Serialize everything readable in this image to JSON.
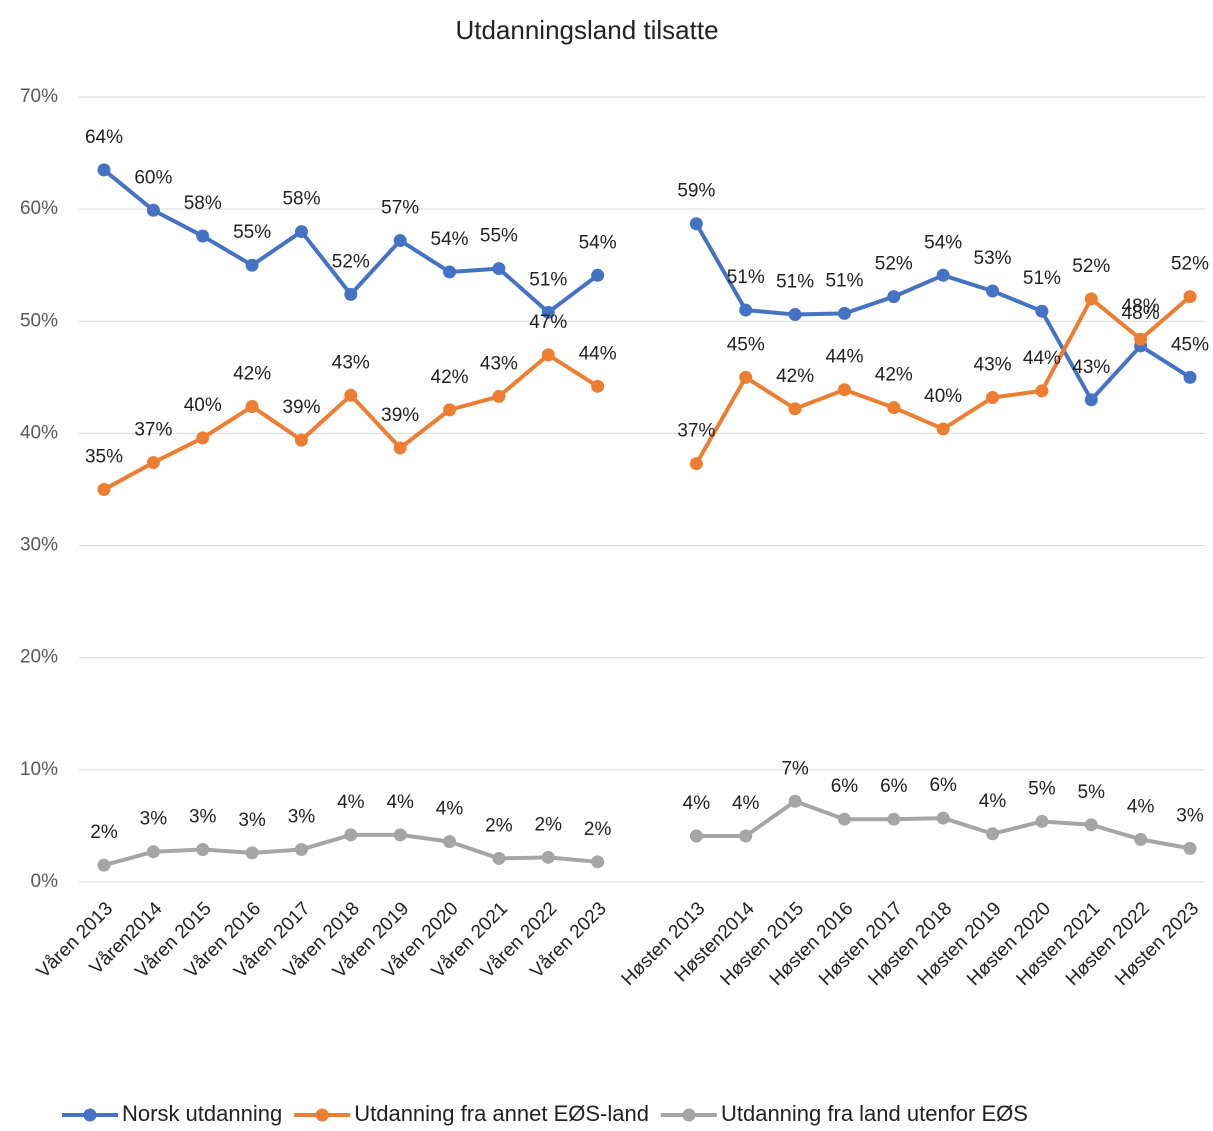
{
  "chart_data": {
    "type": "line",
    "title": "Utdanningsland tilsatte",
    "categories": [
      "Våren 2013",
      "Våren2014",
      "Våren 2015",
      "Våren 2016",
      "Våren 2017",
      "Våren 2018",
      "Våren 2019",
      "Våren 2020",
      "Våren 2021",
      "Våren 2022",
      "Våren 2023",
      null,
      "Høsten 2013",
      "Høsten2014",
      "Høsten 2015",
      "Høsten 2016",
      "Høsten 2017",
      "Høsten 2018",
      "Høsten 2019",
      "Høsten 2020",
      "Høsten 2021",
      "Høsten 2022",
      "Høsten 2023"
    ],
    "series": [
      {
        "name": "Norsk utdanning",
        "color": "#4472c4",
        "values": [
          63.5,
          59.9,
          57.6,
          55.0,
          58.0,
          52.4,
          57.2,
          54.4,
          54.7,
          50.8,
          54.1,
          null,
          58.7,
          51.0,
          50.6,
          50.7,
          52.2,
          54.1,
          52.7,
          50.9,
          43.0,
          47.8,
          45.0
        ],
        "value_labels": [
          "64%",
          "60%",
          "58%",
          "55%",
          "58%",
          "52%",
          "57%",
          "54%",
          "55%",
          "51%",
          "54%",
          null,
          "59%",
          "51%",
          "51%",
          "51%",
          "52%",
          "54%",
          "53%",
          "51%",
          "43%",
          "48%",
          "45%"
        ]
      },
      {
        "name": "Utdanning fra annet EØS-land",
        "color": "#ed7d31",
        "values": [
          35.0,
          37.4,
          39.6,
          42.4,
          39.4,
          43.4,
          38.7,
          42.1,
          43.3,
          47.0,
          44.2,
          null,
          37.3,
          45.0,
          42.2,
          43.9,
          42.3,
          40.4,
          43.2,
          43.8,
          52.0,
          48.4,
          52.2
        ],
        "value_labels": [
          "35%",
          "37%",
          "40%",
          "42%",
          "39%",
          "43%",
          "39%",
          "42%",
          "43%",
          "47%",
          "44%",
          null,
          "37%",
          "45%",
          "42%",
          "44%",
          "42%",
          "40%",
          "43%",
          "44%",
          "52%",
          "48%",
          "52%"
        ]
      },
      {
        "name": "Utdanning fra land utenfor EØS",
        "color": "#a5a5a5",
        "values": [
          1.5,
          2.7,
          2.9,
          2.6,
          2.9,
          4.2,
          4.2,
          3.6,
          2.1,
          2.2,
          1.8,
          null,
          4.1,
          4.1,
          7.2,
          5.6,
          5.6,
          5.7,
          4.3,
          5.4,
          5.1,
          3.8,
          3.0
        ],
        "value_labels": [
          "2%",
          "3%",
          "3%",
          "3%",
          "3%",
          "4%",
          "4%",
          "4%",
          "2%",
          "2%",
          "2%",
          null,
          "4%",
          "4%",
          "7%",
          "6%",
          "6%",
          "6%",
          "4%",
          "5%",
          "5%",
          "4%",
          "3%"
        ]
      }
    ],
    "ylim": [
      0,
      70
    ],
    "yticks": [
      {
        "value": 0,
        "label": "0%"
      },
      {
        "value": 10,
        "label": "10%"
      },
      {
        "value": 20,
        "label": "20%"
      },
      {
        "value": 30,
        "label": "30%"
      },
      {
        "value": 40,
        "label": "40%"
      },
      {
        "value": 50,
        "label": "50%"
      },
      {
        "value": 60,
        "label": "60%"
      },
      {
        "value": 70,
        "label": "70%"
      }
    ],
    "grid": true,
    "legend": "bottom"
  }
}
